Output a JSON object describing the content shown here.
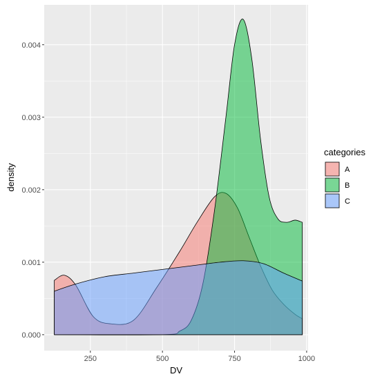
{
  "chart_data": {
    "type": "area",
    "xlabel": "DV",
    "ylabel": "density",
    "xlim": [
      90,
      1005
    ],
    "ylim": [
      -0.00022,
      0.00455
    ],
    "x_ticks": [
      250,
      500,
      750,
      1000
    ],
    "y_ticks": [
      0.0,
      0.001,
      0.002,
      0.003,
      0.004
    ],
    "x_tick_labels": [
      "250",
      "500",
      "750",
      "1000"
    ],
    "y_tick_labels": [
      "0.000",
      "0.001",
      "0.002",
      "0.003",
      "0.004"
    ],
    "grid": true,
    "legend": {
      "title": "categories",
      "placement": "right"
    },
    "series": [
      {
        "name": "A",
        "color": "#F8766D",
        "x": [
          125,
          160,
          200,
          260,
          320,
          400,
          480,
          560,
          620,
          680,
          720,
          760,
          800,
          840,
          880,
          920,
          960,
          985
        ],
        "y": [
          0.00075,
          0.00082,
          0.00068,
          0.00025,
          0.00015,
          0.0002,
          0.00065,
          0.00115,
          0.00155,
          0.0019,
          0.00195,
          0.00175,
          0.00135,
          0.00095,
          0.00062,
          0.00042,
          0.00028,
          0.00022
        ]
      },
      {
        "name": "B",
        "color": "#00BA38",
        "x": [
          125,
          500,
          560,
          600,
          640,
          680,
          720,
          750,
          780,
          810,
          840,
          870,
          900,
          930,
          960,
          985
        ],
        "y": [
          0.0,
          0.0,
          5e-05,
          0.0002,
          0.0007,
          0.0017,
          0.003,
          0.004,
          0.00435,
          0.0038,
          0.0027,
          0.0019,
          0.0016,
          0.00155,
          0.00158,
          0.00155
        ]
      },
      {
        "name": "C",
        "color": "#619CFF",
        "x": [
          125,
          200,
          300,
          400,
          500,
          600,
          700,
          780,
          850,
          920,
          985
        ],
        "y": [
          0.0006,
          0.0007,
          0.0008,
          0.00085,
          0.0009,
          0.00095,
          0.001,
          0.00102,
          0.00098,
          0.00085,
          0.00074
        ]
      }
    ]
  }
}
